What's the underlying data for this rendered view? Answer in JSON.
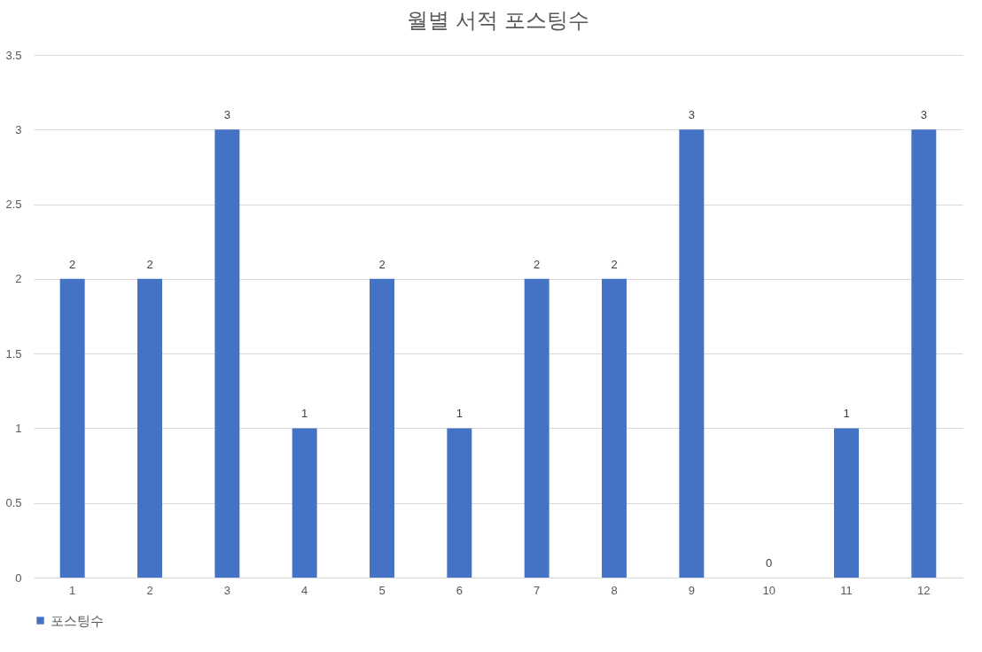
{
  "chart_data": {
    "type": "bar",
    "title": "월별 서적 포스팅수",
    "categories": [
      "1",
      "2",
      "3",
      "4",
      "5",
      "6",
      "7",
      "8",
      "9",
      "10",
      "11",
      "12"
    ],
    "series": [
      {
        "name": "포스팅수",
        "color": "#4472c4",
        "values": [
          2,
          2,
          3,
          1,
          2,
          1,
          2,
          2,
          3,
          0,
          1,
          3
        ]
      }
    ],
    "ylim": [
      0,
      3.5
    ],
    "yticks": [
      0,
      0.5,
      1,
      1.5,
      2,
      2.5,
      3,
      3.5
    ],
    "grid": "y",
    "legend": "bottom",
    "data_labels": true
  }
}
